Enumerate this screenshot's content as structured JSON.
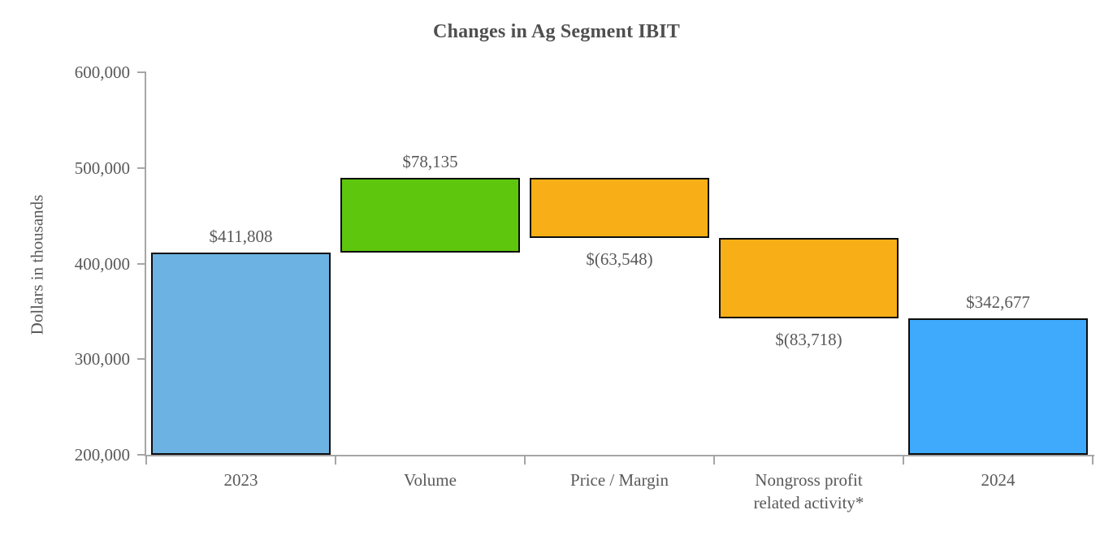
{
  "title": "Changes in Ag Segment IBIT",
  "chart_data": {
    "type": "bar",
    "subtype": "waterfall",
    "title": "Changes in Ag Segment IBIT",
    "xlabel": "",
    "ylabel": "Dollars in thousands",
    "ylim": [
      200000,
      600000
    ],
    "yticks": [
      200000,
      300000,
      400000,
      500000,
      600000
    ],
    "ytick_labels": [
      "200,000",
      "300,000",
      "400,000",
      "500,000",
      "600,000"
    ],
    "grid": false,
    "legend": "none",
    "categories": [
      "2023",
      "Volume",
      "Price / Margin",
      "Nongross profit\nrelated activity*",
      "2024"
    ],
    "bars": [
      {
        "category": "2023",
        "start": 0,
        "end": 411808,
        "value": 411808,
        "value_label": "$411,808",
        "color": "#6cb2e2",
        "value_label_position": "above"
      },
      {
        "category": "Volume",
        "start": 411808,
        "end": 489943,
        "value": 78135,
        "value_label": "$78,135",
        "color": "#5ec60d",
        "value_label_position": "above"
      },
      {
        "category": "Price / Margin",
        "start": 489943,
        "end": 426395,
        "value": -63548,
        "value_label": "$(63,548)",
        "color": "#f8ae17",
        "value_label_position": "below"
      },
      {
        "category": "Nongross profit\nrelated activity*",
        "start": 426395,
        "end": 342677,
        "value": -83718,
        "value_label": "$(83,718)",
        "color": "#f8ae17",
        "value_label_position": "below"
      },
      {
        "category": "2024",
        "start": 0,
        "end": 342677,
        "value": 342677,
        "value_label": "$342,677",
        "color": "#3fa9fc",
        "value_label_position": "above"
      }
    ],
    "colors": {
      "total_bar_2023": "#6cb2e2",
      "total_bar_2024": "#3fa9fc",
      "increase_bar": "#5ec60d",
      "decrease_bar": "#f8ae17",
      "bar_border": "#0d0d0d",
      "axis": "#a6a6a6",
      "text": "#595959"
    }
  }
}
